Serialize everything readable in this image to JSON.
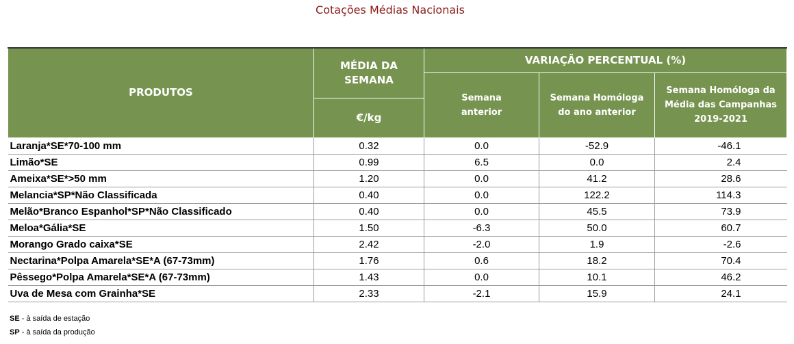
{
  "title": "Cotações Médias Nacionais",
  "headers": {
    "produtos": "PRODUTOS",
    "media_line1": "MÉDIA DA",
    "media_line2": "SEMANA",
    "unit": "€/kg",
    "variacao": "VARIAÇÃO PERCENTUAL (%)",
    "semana_anterior_l1": "Semana",
    "semana_anterior_l2": "anterior",
    "homologa_ano_l1": "Semana Homóloga",
    "homologa_ano_l2": "do ano anterior",
    "homologa_media_l1": "Semana Homóloga da",
    "homologa_media_l2": "Média das Campanhas",
    "homologa_media_l3": "2019-2021"
  },
  "rows": [
    {
      "produto": "Laranja*SE*70-100 mm",
      "media": "0.32",
      "anterior": "0.0",
      "ano": "-52.9",
      "campanhas": "-46.1"
    },
    {
      "produto": "Limão*SE",
      "media": "0.99",
      "anterior": "6.5",
      "ano": "0.0",
      "campanhas": "2.4"
    },
    {
      "produto": "Ameixa*SE*>50 mm",
      "media": "1.20",
      "anterior": "0.0",
      "ano": "41.2",
      "campanhas": "28.6"
    },
    {
      "produto": "Melancia*SP*Não Classificada",
      "media": "0.40",
      "anterior": "0.0",
      "ano": "122.2",
      "campanhas": "114.3"
    },
    {
      "produto": "Melão*Branco Espanhol*SP*Não Classificado",
      "media": "0.40",
      "anterior": "0.0",
      "ano": "45.5",
      "campanhas": "73.9"
    },
    {
      "produto": "Meloa*Gália*SE",
      "media": "1.50",
      "anterior": "-6.3",
      "ano": "50.0",
      "campanhas": "60.7"
    },
    {
      "produto": "Morango Grado caixa*SE",
      "media": "2.42",
      "anterior": "-2.0",
      "ano": "1.9",
      "campanhas": "-2.6"
    },
    {
      "produto": "Nectarina*Polpa Amarela*SE*A (67-73mm)",
      "media": "1.76",
      "anterior": "0.6",
      "ano": "18.2",
      "campanhas": "70.4"
    },
    {
      "produto": "Pêssego*Polpa Amarela*SE*A (67-73mm)",
      "media": "1.43",
      "anterior": "0.0",
      "ano": "10.1",
      "campanhas": "46.2"
    },
    {
      "produto": "Uva de Mesa com Grainha*SE",
      "media": "2.33",
      "anterior": "-2.1",
      "ano": "15.9",
      "campanhas": "24.1"
    }
  ],
  "notes": [
    {
      "abbr": "SE",
      "text": " - à saída de estação"
    },
    {
      "abbr": "SP",
      "text": " - à saída da produção"
    }
  ]
}
